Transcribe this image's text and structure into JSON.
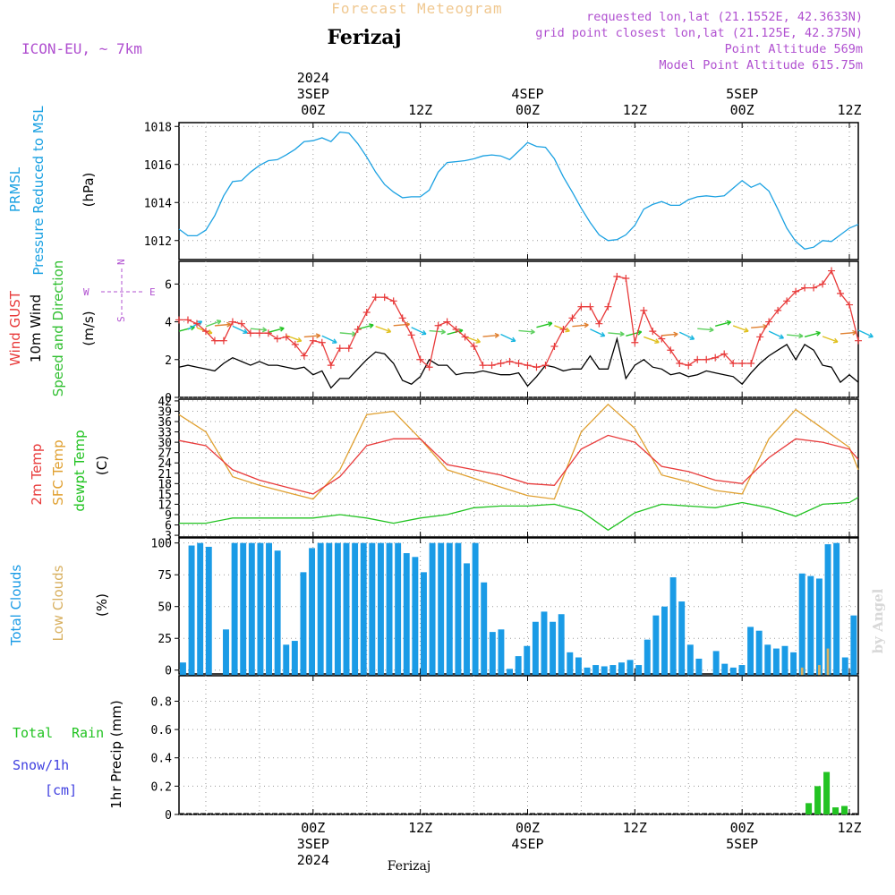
{
  "header": {
    "product": "Forecast Meteogram",
    "location": "Ferizaj",
    "model": "ICON-EU, ~ 7km",
    "requested_point": "requested lon,lat (21.1552E, 42.3633N)",
    "grid_point": "grid point closest lon,lat (21.125E, 42.375N)",
    "point_altitude": "Point Altitude 569m",
    "model_altitude": "Model Point Altitude 615.75m",
    "watermark": "by Angel",
    "footer_location": "Ferizaj"
  },
  "colors": {
    "pressure": "#1ba1e2",
    "gust": "#e83a3a",
    "wind10m": "#000000",
    "wind_dir": "#2fbf2f",
    "temp2m": "#e83a3a",
    "sfc_temp": "#e0a030",
    "dewpt": "#22c322",
    "total_clouds": "#1a9be6",
    "low_clouds": "#d8b060",
    "rain": "#22c322",
    "snow": "#4040e0",
    "compass": "#b050d0",
    "header_meta": "#b050d0",
    "product_title": "#f0c890"
  },
  "time_axis": {
    "top": {
      "year": "2024",
      "labels": [
        {
          "key": "a",
          "lines": [
            "3SEP",
            "00Z"
          ]
        },
        {
          "key": "b",
          "lines": [
            "12Z"
          ]
        },
        {
          "key": "c",
          "lines": [
            "4SEP",
            "00Z"
          ]
        },
        {
          "key": "d",
          "lines": [
            "12Z"
          ]
        },
        {
          "key": "e",
          "lines": [
            "5SEP",
            "00Z"
          ]
        },
        {
          "key": "f",
          "lines": [
            "12Z"
          ]
        }
      ]
    },
    "bottom": {
      "labels": [
        {
          "key": "a",
          "lines": [
            "00Z",
            "3SEP",
            "2024"
          ]
        },
        {
          "key": "b",
          "lines": [
            "12Z"
          ]
        },
        {
          "key": "c",
          "lines": [
            "00Z",
            "4SEP"
          ]
        },
        {
          "key": "d",
          "lines": [
            "12Z"
          ]
        },
        {
          "key": "e",
          "lines": [
            "00Z",
            "5SEP"
          ]
        },
        {
          "key": "f",
          "lines": [
            "12Z"
          ]
        }
      ]
    }
  },
  "panels": {
    "pressure": {
      "label_line1": "PRMSL",
      "label_line2": "Pressure Reduced to MSL",
      "unit": "(hPa)"
    },
    "wind": {
      "label_gust": "Wind GUST",
      "label_wind": "10m Wind",
      "label_speed": "Speed and Direction",
      "unit": "(m/s)",
      "compass_w": "W",
      "compass_e": "E",
      "compass_n": "N",
      "compass_s": "S"
    },
    "temp": {
      "label_2m": "2m Temp",
      "label_sfc": "SFC Temp",
      "label_dewpt": "dewpt Temp",
      "unit": "(C)"
    },
    "clouds": {
      "label_total": "Total Clouds",
      "label_low": "Low Clouds",
      "unit": "(%)"
    },
    "precip": {
      "label_total": "Total",
      "label_rain": "Rain",
      "label_snow": "Snow/1h",
      "label_cm": "[cm]",
      "unit": "1hr Precip (mm)"
    }
  },
  "chart_data": [
    {
      "type": "line",
      "title": "PRMSL Pressure Reduced to MSL",
      "ylabel": "hPa",
      "ylim": [
        1011,
        1018.2
      ],
      "yticks": [
        1012,
        1014,
        1016,
        1018
      ],
      "x_unit": "hours since 2024-09-02 09Z",
      "series": [
        {
          "name": "PRMSL",
          "x": [
            0,
            1,
            2,
            3,
            4,
            5,
            6,
            7,
            8,
            9,
            10,
            11,
            12,
            13,
            14,
            15,
            16,
            17,
            18,
            19,
            20,
            21,
            22,
            23,
            24,
            25,
            26,
            27,
            28,
            29,
            30,
            31,
            32,
            33,
            34,
            35,
            36,
            37,
            38,
            39,
            40,
            41,
            42,
            43,
            44,
            45,
            46,
            47,
            48,
            49,
            50,
            51,
            52,
            53,
            54,
            55,
            56,
            57,
            58,
            59,
            60,
            61,
            62,
            63,
            64,
            65,
            66,
            67,
            68,
            69,
            70,
            71,
            72,
            73,
            74,
            75,
            76
          ],
          "values": [
            1012.6,
            1012.25,
            1012.25,
            1012.55,
            1013.3,
            1014.35,
            1015.1,
            1015.15,
            1015.6,
            1015.95,
            1016.2,
            1016.25,
            1016.5,
            1016.8,
            1017.2,
            1017.25,
            1017.4,
            1017.2,
            1017.7,
            1017.65,
            1017.1,
            1016.4,
            1015.6,
            1014.95,
            1014.55,
            1014.25,
            1014.3,
            1014.3,
            1014.65,
            1015.6,
            1016.1,
            1016.15,
            1016.2,
            1016.3,
            1016.45,
            1016.5,
            1016.45,
            1016.25,
            1016.7,
            1017.15,
            1016.95,
            1016.9,
            1016.3,
            1015.35,
            1014.55,
            1013.7,
            1012.95,
            1012.3,
            1012.0,
            1012.05,
            1012.3,
            1012.8,
            1013.65,
            1013.9,
            1014.05,
            1013.85,
            1013.85,
            1014.15,
            1014.3,
            1014.35,
            1014.3,
            1014.35,
            1014.75,
            1015.15,
            1014.8,
            1015.0,
            1014.6,
            1013.65,
            1012.65,
            1011.95,
            1011.55,
            1011.65,
            1012.0,
            1011.95,
            1012.3,
            1012.65,
            1012.85
          ]
        }
      ]
    },
    {
      "type": "line",
      "title": "Wind GUST / 10m Wind",
      "ylabel": "m/s",
      "ylim": [
        0,
        7.2
      ],
      "yticks": [
        0,
        2,
        4,
        6
      ],
      "series": [
        {
          "name": "Wind GUST",
          "x": [
            0,
            1,
            2,
            3,
            4,
            5,
            6,
            7,
            8,
            9,
            10,
            11,
            12,
            13,
            14,
            15,
            16,
            17,
            18,
            19,
            20,
            21,
            22,
            23,
            24,
            25,
            26,
            27,
            28,
            29,
            30,
            31,
            32,
            33,
            34,
            35,
            36,
            37,
            38,
            39,
            40,
            41,
            42,
            43,
            44,
            45,
            46,
            47,
            48,
            49,
            50,
            51,
            52,
            53,
            54,
            55,
            56,
            57,
            58,
            59,
            60,
            61,
            62,
            63,
            64,
            65,
            66,
            67,
            68,
            69,
            70,
            71,
            72,
            73,
            74,
            75,
            76
          ],
          "values": [
            4.1,
            4.1,
            3.9,
            3.5,
            3.0,
            3.0,
            4.0,
            3.9,
            3.4,
            3.4,
            3.4,
            3.1,
            3.2,
            2.8,
            2.2,
            3.0,
            2.9,
            1.7,
            2.6,
            2.6,
            3.6,
            4.5,
            5.3,
            5.3,
            5.1,
            4.2,
            3.3,
            2.0,
            1.6,
            3.8,
            4.0,
            3.6,
            3.2,
            2.7,
            1.7,
            1.7,
            1.8,
            1.9,
            1.8,
            1.7,
            1.6,
            1.7,
            2.7,
            3.6,
            4.2,
            4.8,
            4.8,
            3.9,
            4.8,
            6.4,
            6.3,
            2.9,
            4.6,
            3.5,
            3.1,
            2.5,
            1.8,
            1.7,
            2.0,
            2.0,
            2.1,
            2.3,
            1.8,
            1.8,
            1.8,
            3.2,
            4.0,
            4.6,
            5.1,
            5.6,
            5.8,
            5.8,
            6.0,
            6.7,
            5.5,
            4.9,
            3.0
          ]
        },
        {
          "name": "10m Wind",
          "x": [
            0,
            1,
            2,
            3,
            4,
            5,
            6,
            7,
            8,
            9,
            10,
            11,
            12,
            13,
            14,
            15,
            16,
            17,
            18,
            19,
            20,
            21,
            22,
            23,
            24,
            25,
            26,
            27,
            28,
            29,
            30,
            31,
            32,
            33,
            34,
            35,
            36,
            37,
            38,
            39,
            40,
            41,
            42,
            43,
            44,
            45,
            46,
            47,
            48,
            49,
            50,
            51,
            52,
            53,
            54,
            55,
            56,
            57,
            58,
            59,
            60,
            61,
            62,
            63,
            64,
            65,
            66,
            67,
            68,
            69,
            70,
            71,
            72,
            73,
            74,
            75,
            76
          ],
          "values": [
            1.6,
            1.7,
            1.6,
            1.5,
            1.4,
            1.8,
            2.1,
            1.9,
            1.7,
            1.9,
            1.7,
            1.7,
            1.6,
            1.5,
            1.6,
            1.2,
            1.4,
            0.5,
            1.0,
            1.0,
            1.5,
            2.0,
            2.4,
            2.3,
            1.8,
            0.9,
            0.7,
            1.1,
            2.0,
            1.7,
            1.7,
            1.2,
            1.3,
            1.3,
            1.4,
            1.3,
            1.2,
            1.2,
            1.3,
            0.6,
            1.1,
            1.7,
            1.6,
            1.4,
            1.5,
            1.5,
            2.2,
            1.5,
            1.5,
            3.1,
            1.0,
            1.7,
            2.0,
            1.6,
            1.5,
            1.2,
            1.3,
            1.1,
            1.2,
            1.4,
            1.3,
            1.2,
            1.1,
            0.7,
            1.3,
            1.8,
            2.2,
            2.5,
            2.8,
            2.0,
            2.8,
            2.5,
            1.7,
            1.6,
            0.8,
            1.2,
            0.8
          ]
        }
      ]
    },
    {
      "type": "line",
      "title": "2m Temp / SFC Temp / dewpt Temp",
      "ylabel": "C",
      "ylim": [
        2.5,
        42.5
      ],
      "yticks": [
        3,
        6,
        9,
        12,
        15,
        18,
        21,
        24,
        27,
        30,
        33,
        36,
        39,
        42
      ],
      "series": [
        {
          "name": "2m Temp",
          "x": [
            0,
            3,
            6,
            9,
            12,
            15,
            18,
            21,
            24,
            27,
            30,
            33,
            36,
            39,
            42,
            45,
            48,
            51,
            54,
            57,
            60,
            63,
            66,
            69,
            72,
            75,
            76
          ],
          "values": [
            30.5,
            29.0,
            22.0,
            19.0,
            17.0,
            15.0,
            20.0,
            29.0,
            31.0,
            31.0,
            23.5,
            22.0,
            20.5,
            18.0,
            17.5,
            28.0,
            32.0,
            30.0,
            23.0,
            21.5,
            19.0,
            18.0,
            25.5,
            31.0,
            30.0,
            28.0,
            25.0
          ]
        },
        {
          "name": "SFC Temp",
          "x": [
            0,
            3,
            6,
            9,
            12,
            15,
            18,
            21,
            24,
            27,
            30,
            33,
            36,
            39,
            42,
            45,
            48,
            51,
            54,
            57,
            60,
            63,
            66,
            69,
            72,
            75,
            76
          ],
          "values": [
            38.0,
            33.0,
            20.0,
            17.5,
            15.5,
            13.5,
            22.0,
            38.0,
            39.0,
            31.0,
            22.0,
            19.5,
            17.0,
            14.5,
            13.5,
            33.0,
            41.0,
            34.0,
            20.5,
            18.5,
            16.0,
            15.0,
            31.0,
            39.5,
            34.0,
            28.5,
            22.0
          ]
        },
        {
          "name": "dewpt Temp",
          "x": [
            0,
            3,
            6,
            9,
            12,
            15,
            18,
            21,
            24,
            27,
            30,
            33,
            36,
            39,
            42,
            45,
            48,
            51,
            54,
            57,
            60,
            63,
            66,
            69,
            72,
            75,
            76
          ],
          "values": [
            6.5,
            6.5,
            8.0,
            8.0,
            8.0,
            8.0,
            9.0,
            8.0,
            6.5,
            8.0,
            9.0,
            11.0,
            11.5,
            11.5,
            12.0,
            10.0,
            4.5,
            9.5,
            12.0,
            11.5,
            11.0,
            12.5,
            11.0,
            8.5,
            12.0,
            12.5,
            14.0
          ]
        }
      ]
    },
    {
      "type": "bar",
      "title": "Total Clouds / Low Clouds",
      "ylabel": "%",
      "ylim": [
        -3,
        104
      ],
      "yticks": [
        0,
        25,
        50,
        75,
        100
      ],
      "series": [
        {
          "name": "Total Clouds",
          "values": [
            6,
            98,
            100,
            97,
            0,
            32,
            100,
            100,
            100,
            100,
            100,
            94,
            20,
            23,
            77,
            96,
            100,
            100,
            100,
            100,
            100,
            100,
            100,
            100,
            100,
            100,
            92,
            89,
            77,
            100,
            100,
            100,
            100,
            84,
            100,
            69,
            30,
            32,
            1,
            11,
            19,
            38,
            46,
            38,
            44,
            14,
            10,
            2,
            4,
            3,
            4,
            6,
            8,
            4,
            24,
            43,
            50,
            73,
            54,
            20,
            9,
            0,
            15,
            5,
            2,
            4,
            34,
            31,
            20,
            17,
            19,
            14,
            76,
            74,
            72,
            99,
            100,
            10,
            43
          ]
        },
        {
          "name": "Low Clouds",
          "values": [
            0,
            0,
            0,
            0,
            0,
            0,
            0,
            0,
            0,
            0,
            0,
            0,
            0,
            0,
            0,
            0,
            0,
            0,
            0,
            0,
            0,
            0,
            0,
            0,
            0,
            0,
            0,
            0,
            0,
            0,
            0,
            0,
            0,
            0,
            0,
            0,
            0,
            0,
            0,
            0,
            0,
            0,
            0,
            0,
            0,
            0,
            0,
            0,
            0,
            0,
            0,
            0,
            0,
            0,
            0,
            0,
            0,
            0,
            0,
            0,
            0,
            0,
            0,
            0,
            0,
            0,
            0,
            0,
            0,
            0,
            0,
            0,
            2,
            0,
            4,
            17,
            0,
            0,
            0
          ]
        }
      ]
    },
    {
      "type": "bar",
      "title": "1hr Precip",
      "ylabel": "mm",
      "ylim": [
        0,
        0.98
      ],
      "yticks": [
        0,
        0.2,
        0.4,
        0.6,
        0.8
      ],
      "series": [
        {
          "name": "Total Rain",
          "x": [
            70,
            71,
            72,
            73,
            74
          ],
          "values": [
            0.08,
            0.2,
            0.3,
            0.05,
            0.06
          ]
        }
      ]
    }
  ]
}
